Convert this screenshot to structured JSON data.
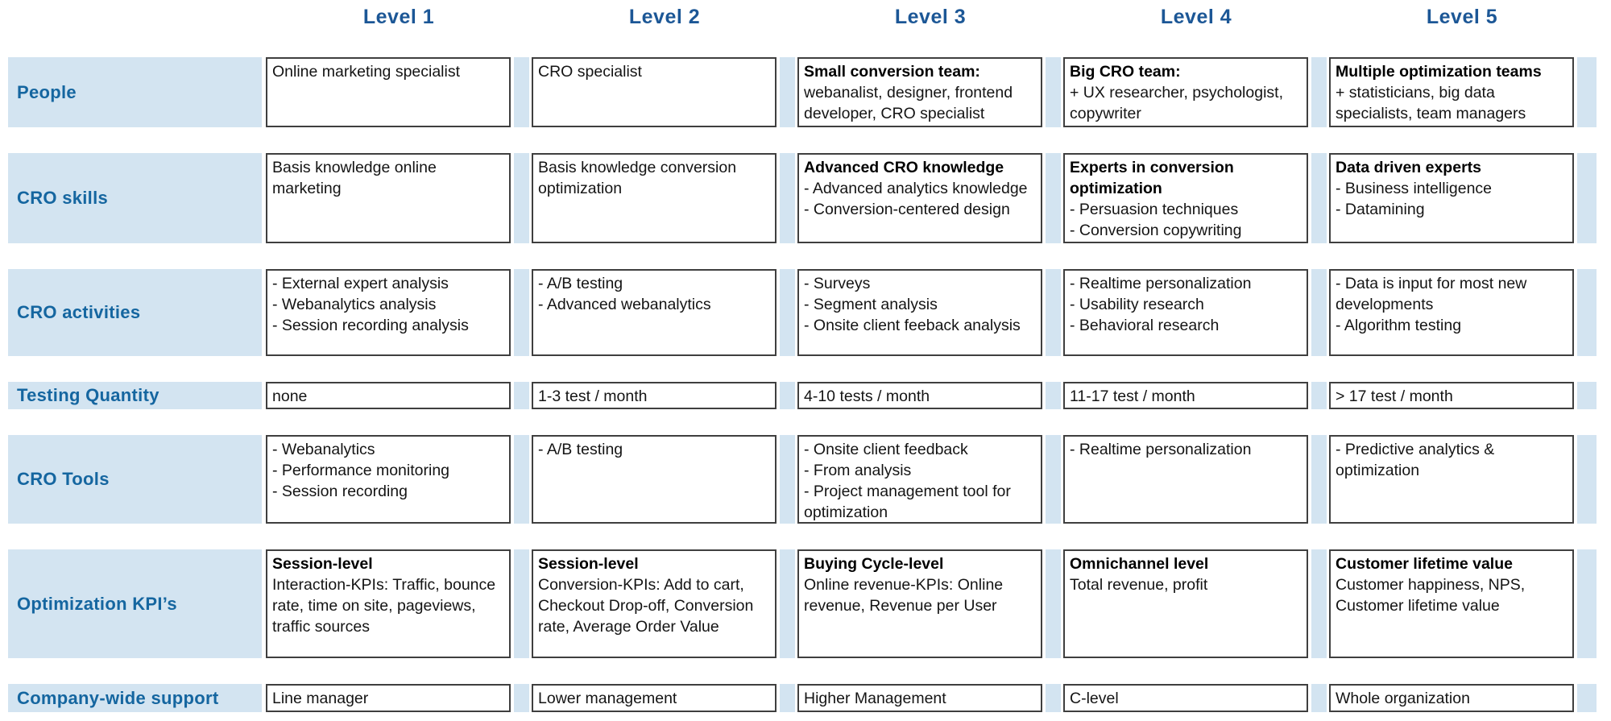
{
  "colors": {
    "header_text": "#1c5796",
    "row_label_text": "#1566a0",
    "row_band_blue": "#d3e4f1",
    "cell_border": "#3f3f3f",
    "cell_text": "#141414"
  },
  "table": {
    "column_headers": [
      "Level 1",
      "Level 2",
      "Level 3",
      "Level 4",
      "Level 5"
    ],
    "rows": [
      {
        "label": "People",
        "cells": [
          {
            "body": "Online marketing specialist"
          },
          {
            "body": "CRO specialist"
          },
          {
            "head": "Small conversion team:",
            "body": "webanalist, designer, frontend developer, CRO specialist"
          },
          {
            "head": "Big CRO team:",
            "body": "+ UX researcher, psychologist, copywriter"
          },
          {
            "head": "Multiple optimization teams",
            "body": "+ statisticians, big data specialists, team managers"
          }
        ]
      },
      {
        "label": "CRO skills",
        "cells": [
          {
            "body": "Basis knowledge online marketing"
          },
          {
            "body": "Basis knowledge conversion optimization"
          },
          {
            "head": "Advanced CRO knowledge",
            "body": "- Advanced analytics knowledge\n- Conversion-centered design"
          },
          {
            "head": "Experts in conversion optimization",
            "body": "- Persuasion techniques\n- Conversion copywriting"
          },
          {
            "head": "Data driven experts",
            "body": "- Business intelligence\n- Datamining"
          }
        ]
      },
      {
        "label": "CRO activities",
        "cells": [
          {
            "body": "- External expert analysis\n- Webanalytics analysis\n- Session recording analysis"
          },
          {
            "body": "- A/B testing\n- Advanced webanalytics"
          },
          {
            "body": "- Surveys\n- Segment analysis\n- Onsite client feeback analysis"
          },
          {
            "body": "- Realtime personalization\n- Usability research\n- Behavioral research"
          },
          {
            "body": "- Data is input for most new developments\n- Algorithm testing"
          }
        ]
      },
      {
        "label": "Testing Quantity",
        "cells": [
          {
            "body": "none"
          },
          {
            "body": "1-3 test / month"
          },
          {
            "body": "4-10 tests / month"
          },
          {
            "body": "11-17 test / month"
          },
          {
            "body": "> 17 test / month"
          }
        ]
      },
      {
        "label": "CRO Tools",
        "cells": [
          {
            "body": "- Webanalytics\n- Performance monitoring\n- Session recording"
          },
          {
            "body": "- A/B testing"
          },
          {
            "body": "- Onsite client feedback\n- From analysis\n- Project management tool for optimization"
          },
          {
            "body": "- Realtime personalization"
          },
          {
            "body": "- Predictive analytics & optimization"
          }
        ]
      },
      {
        "label": "Optimization KPI’s",
        "cells": [
          {
            "head": "Session-level",
            "body": "Interaction-KPIs: Traffic, bounce rate, time on site, pageviews, traffic sources"
          },
          {
            "head": "Session-level",
            "body": "Conversion-KPIs: Add to cart, Checkout Drop-off, Conversion rate, Average Order Value"
          },
          {
            "head": "Buying Cycle-level",
            "body": "Online revenue-KPIs: Online revenue, Revenue per User"
          },
          {
            "head": "Omnichannel level",
            "body": "Total revenue, profit"
          },
          {
            "head": "Customer lifetime value",
            "body": "Customer happiness, NPS, Customer lifetime value"
          }
        ]
      },
      {
        "label": "Company-wide support",
        "cells": [
          {
            "body": "Line manager"
          },
          {
            "body": "Lower management"
          },
          {
            "body": "Higher Management"
          },
          {
            "body": "C-level"
          },
          {
            "body": "Whole organization"
          }
        ]
      }
    ]
  }
}
